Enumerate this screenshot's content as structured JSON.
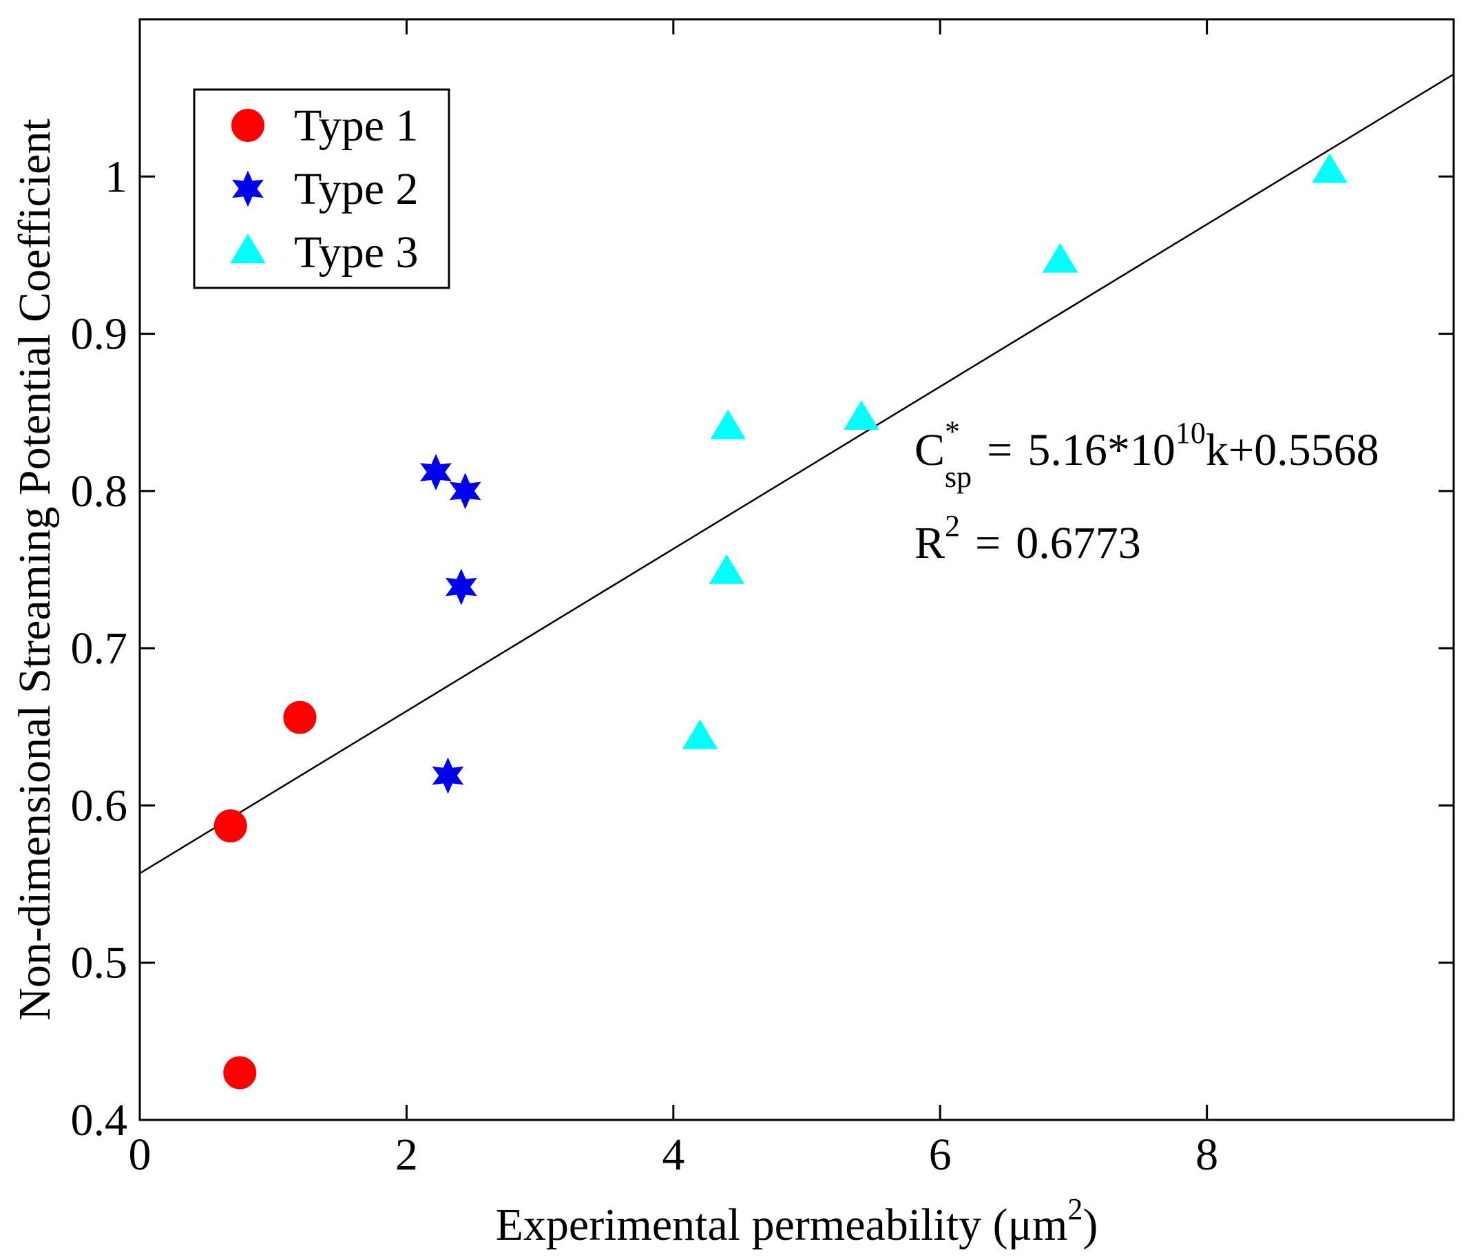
{
  "chart_data": {
    "type": "scatter",
    "title": "",
    "xlabel": "Experimental permeability (μm",
    "xlabel_sup": "2",
    "xlabel_close": ")",
    "ylabel": "Non-dimensional Streaming Potential Coefficient",
    "xlim": [
      0,
      9.85
    ],
    "ylim": [
      0.4,
      1.1
    ],
    "xticks": [
      0,
      2,
      4,
      6,
      8
    ],
    "xtick_labels": [
      "0",
      "2",
      "4",
      "6",
      "8"
    ],
    "yticks": [
      0.4,
      0.5,
      0.6,
      0.7,
      0.8,
      0.9,
      1.0
    ],
    "ytick_labels": [
      "0.4",
      "0.5",
      "0.6",
      "0.7",
      "0.8",
      "0.9",
      "1"
    ],
    "grid": false,
    "legend_position": "top-left",
    "series": [
      {
        "name": "Type 1",
        "marker": "circle",
        "color": "#ff0000",
        "x": [
          0.68,
          0.75,
          1.2
        ],
        "y": [
          0.587,
          0.43,
          0.656
        ]
      },
      {
        "name": "Type 2",
        "marker": "hexagram",
        "color": "#0000ee",
        "x": [
          2.22,
          2.44,
          2.41,
          2.31
        ],
        "y": [
          0.812,
          0.8,
          0.739,
          0.619
        ]
      },
      {
        "name": "Type 3",
        "marker": "triangle",
        "color": "#00ffff",
        "x": [
          4.41,
          5.41,
          4.4,
          4.2,
          6.9,
          8.92
        ],
        "y": [
          0.84,
          0.846,
          0.748,
          0.643,
          0.946,
          1.003
        ]
      }
    ],
    "fit_line": {
      "intercept": 0.5568,
      "slope": 0.0516,
      "x_range": [
        0,
        9.85
      ]
    },
    "annotations": {
      "equation": {
        "lhs": "C",
        "lhs_sup": "*",
        "lhs_sub": "sp",
        "equals": "=",
        "rhs_main": "5.16*10",
        "rhs_sup": "10",
        "rhs_tail": "k+0.5568"
      },
      "r_squared": {
        "lhs": "R",
        "lhs_sup": "2",
        "equals": "=",
        "value": "0.6773"
      }
    }
  }
}
